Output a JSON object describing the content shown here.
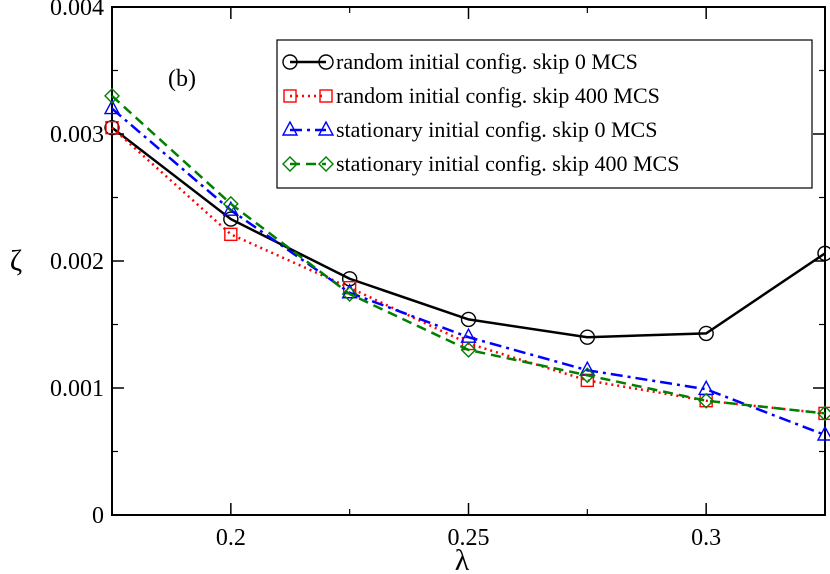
{
  "chart_data": {
    "type": "line",
    "panel_label": "(b)",
    "xlabel": "λ",
    "ylabel": "ζ",
    "xlim": [
      0.175,
      0.325
    ],
    "ylim": [
      0,
      0.004
    ],
    "x_ticks": [
      0.2,
      0.25,
      0.3
    ],
    "x_tick_labels": [
      "0.2",
      "0.25",
      "0.3"
    ],
    "y_ticks": [
      0,
      0.001,
      0.002,
      0.003,
      0.004
    ],
    "y_tick_labels": [
      "0",
      "0.001",
      "0.002",
      "0.003",
      "0.004"
    ],
    "grid": false,
    "legend_position": "top-right",
    "x": [
      0.175,
      0.2,
      0.225,
      0.25,
      0.275,
      0.3,
      0.325
    ],
    "series": [
      {
        "name": "random initial config. skip 0 MCS",
        "color": "#000000",
        "marker": "circle",
        "dash": "solid",
        "values": [
          0.00305,
          0.00233,
          0.00186,
          0.00154,
          0.0014,
          0.00143,
          0.00206
        ]
      },
      {
        "name": "random initial config. skip 400 MCS",
        "color": "#ff0000",
        "marker": "square",
        "dash": "dotted",
        "values": [
          0.00305,
          0.00221,
          0.00179,
          0.00135,
          0.00106,
          0.0009,
          0.0008
        ]
      },
      {
        "name": "stationary initial config. skip 0 MCS",
        "color": "#0000ff",
        "marker": "triangle",
        "dash": "dashdot",
        "values": [
          0.0032,
          0.0024,
          0.00175,
          0.0014,
          0.00114,
          0.00099,
          0.00063
        ]
      },
      {
        "name": "stationary initial config. skip 400 MCS",
        "color": "#008000",
        "marker": "diamond",
        "dash": "dashed",
        "values": [
          0.0033,
          0.00245,
          0.00174,
          0.0013,
          0.0011,
          0.0009,
          0.0008
        ]
      }
    ]
  }
}
